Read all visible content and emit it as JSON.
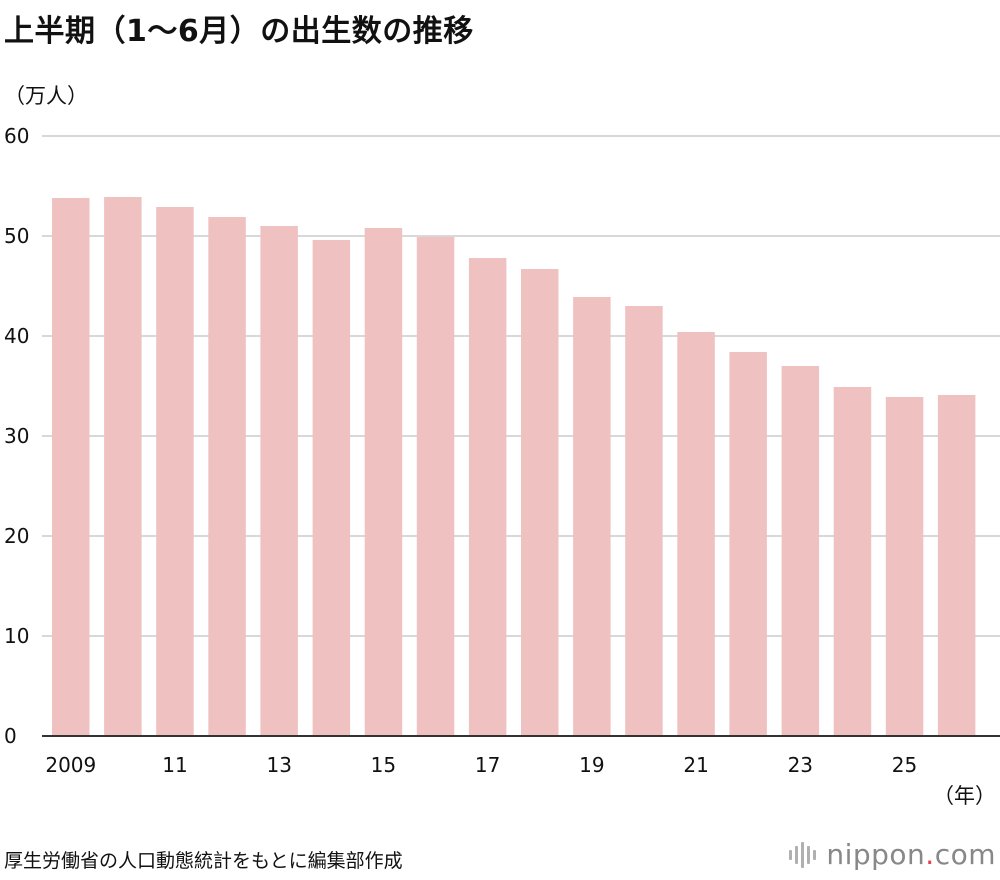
{
  "title": "上半期（1〜6月）の出生数の推移",
  "colors": {
    "bar": "#f0c1c1",
    "grid": "#cccccc",
    "axis": "#333333",
    "accent_dot": "#e8404a"
  },
  "chart_data": {
    "type": "bar",
    "title": "上半期（1〜6月）の出生数の推移",
    "ylabel": "（万人）",
    "xlabel": "（年）",
    "ylim": [
      0,
      60
    ],
    "yticks": [
      0,
      10,
      20,
      30,
      40,
      50,
      60
    ],
    "categories": [
      "2009",
      "2010",
      "2011",
      "2012",
      "2013",
      "2014",
      "2015",
      "2016",
      "2017",
      "2018",
      "2019",
      "2020",
      "2021",
      "2022",
      "2023",
      "2024",
      "2025",
      "2026"
    ],
    "tick_labels": [
      "2009",
      "",
      "11",
      "",
      "13",
      "",
      "15",
      "",
      "17",
      "",
      "19",
      "",
      "21",
      "",
      "23",
      "",
      "25",
      ""
    ],
    "values": [
      53.8,
      53.9,
      52.9,
      51.9,
      51.0,
      49.6,
      50.8,
      49.9,
      47.8,
      46.7,
      43.9,
      43.0,
      40.4,
      38.4,
      37.0,
      34.9,
      33.9,
      34.1
    ],
    "grid": true
  },
  "source": "厚生労働省の人口動態統計をもとに編集部作成",
  "brand": {
    "name": "nippon",
    "dot": ".",
    "suffix": "com"
  }
}
